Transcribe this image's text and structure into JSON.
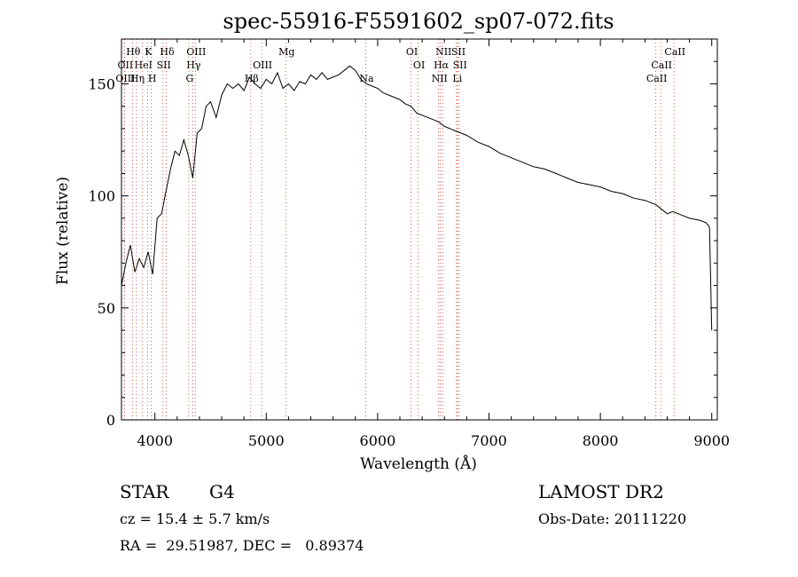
{
  "chart_data": {
    "type": "line",
    "title": "spec-55916-F5591602_sp07-072.fits",
    "xlabel": "Wavelength (Å)",
    "ylabel": "Flux (relative)",
    "xlim": [
      3700,
      9050
    ],
    "ylim": [
      0,
      170
    ],
    "xticks": [
      4000,
      5000,
      6000,
      7000,
      8000,
      9000
    ],
    "yticks": [
      0,
      50,
      100,
      150
    ],
    "series": [
      {
        "x": [
          3700,
          3740,
          3780,
          3820,
          3860,
          3900,
          3940,
          3980,
          4020,
          4060,
          4100,
          4140,
          4180,
          4220,
          4260,
          4300,
          4340,
          4380,
          4420,
          4460,
          4500,
          4550,
          4600,
          4650,
          4700,
          4750,
          4800,
          4850,
          4900,
          4950,
          5000,
          5050,
          5100,
          5150,
          5200,
          5250,
          5300,
          5350,
          5400,
          5450,
          5500,
          5550,
          5600,
          5650,
          5700,
          5750,
          5800,
          5850,
          5900,
          5950,
          6000,
          6050,
          6100,
          6150,
          6200,
          6250,
          6300,
          6350,
          6400,
          6450,
          6500,
          6550,
          6600,
          6650,
          6700,
          6750,
          6800,
          6900,
          7000,
          7100,
          7200,
          7300,
          7400,
          7500,
          7600,
          7700,
          7800,
          7900,
          8000,
          8100,
          8200,
          8300,
          8400,
          8500,
          8550,
          8600,
          8650,
          8700,
          8800,
          8900,
          8950,
          8980,
          9000
        ],
        "values": [
          60,
          70,
          78,
          66,
          72,
          68,
          75,
          65,
          90,
          92,
          102,
          112,
          120,
          118,
          125,
          118,
          108,
          128,
          130,
          140,
          142,
          135,
          145,
          150,
          148,
          150,
          147,
          153,
          150,
          148,
          152,
          150,
          155,
          148,
          150,
          147,
          151,
          150,
          154,
          152,
          155,
          152,
          153,
          154,
          156,
          158,
          156,
          152,
          150,
          149,
          148,
          146,
          145,
          144,
          143,
          141,
          140,
          137,
          136,
          135,
          134,
          133,
          131,
          130,
          129,
          128,
          127,
          124,
          122,
          119,
          117,
          115,
          113,
          112,
          110,
          108,
          106,
          105,
          104,
          102,
          101,
          99,
          98,
          96,
          94,
          92,
          93,
          92,
          90,
          89,
          88,
          86,
          40
        ]
      }
    ],
    "grid": false,
    "spectral_lines": [
      {
        "label": "Hθ",
        "x": 3798,
        "row": 0
      },
      {
        "label": "K",
        "x": 3934,
        "row": 0
      },
      {
        "label": "Hδ",
        "x": 4102,
        "row": 0
      },
      {
        "label": "OII",
        "x": 3727,
        "row": 1
      },
      {
        "label": "HeI",
        "x": 3889,
        "row": 1
      },
      {
        "label": "SII",
        "x": 4072,
        "row": 1
      },
      {
        "label": "OIII",
        "x": 3727,
        "row": 2
      },
      {
        "label": "Hη",
        "x": 3835,
        "row": 2
      },
      {
        "label": "H",
        "x": 3968,
        "row": 2
      },
      {
        "label": "OIII",
        "x": 4363,
        "row": 0
      },
      {
        "label": "Hγ",
        "x": 4340,
        "row": 1
      },
      {
        "label": "G",
        "x": 4304,
        "row": 2
      },
      {
        "label": "Hβ",
        "x": 4861,
        "row": 2
      },
      {
        "label": "OIII",
        "x": 4959,
        "row": 1
      },
      {
        "label": "Mg",
        "x": 5175,
        "row": 0
      },
      {
        "label": "Na",
        "x": 5893,
        "row": 2
      },
      {
        "label": "OI",
        "x": 6300,
        "row": 0
      },
      {
        "label": "OI",
        "x": 6364,
        "row": 1
      },
      {
        "label": "NII",
        "x": 6584,
        "row": 0
      },
      {
        "label": "SII",
        "x": 6717,
        "row": 0
      },
      {
        "label": "Hα",
        "x": 6563,
        "row": 1
      },
      {
        "label": "SII",
        "x": 6731,
        "row": 1
      },
      {
        "label": "NII",
        "x": 6548,
        "row": 2
      },
      {
        "label": "Li",
        "x": 6708,
        "row": 2
      },
      {
        "label": "CaII",
        "x": 8662,
        "row": 0
      },
      {
        "label": "CaII",
        "x": 8542,
        "row": 1
      },
      {
        "label": "CaII",
        "x": 8498,
        "row": 2
      }
    ]
  },
  "info": {
    "object_class": "STAR",
    "subclass": "G4",
    "survey": "LAMOST DR2",
    "cz": "cz = 15.4 ± 5.7 km/s",
    "obs_date": "Obs-Date: 20111220",
    "coords": "RA =  29.51987, DEC =   0.89374"
  }
}
